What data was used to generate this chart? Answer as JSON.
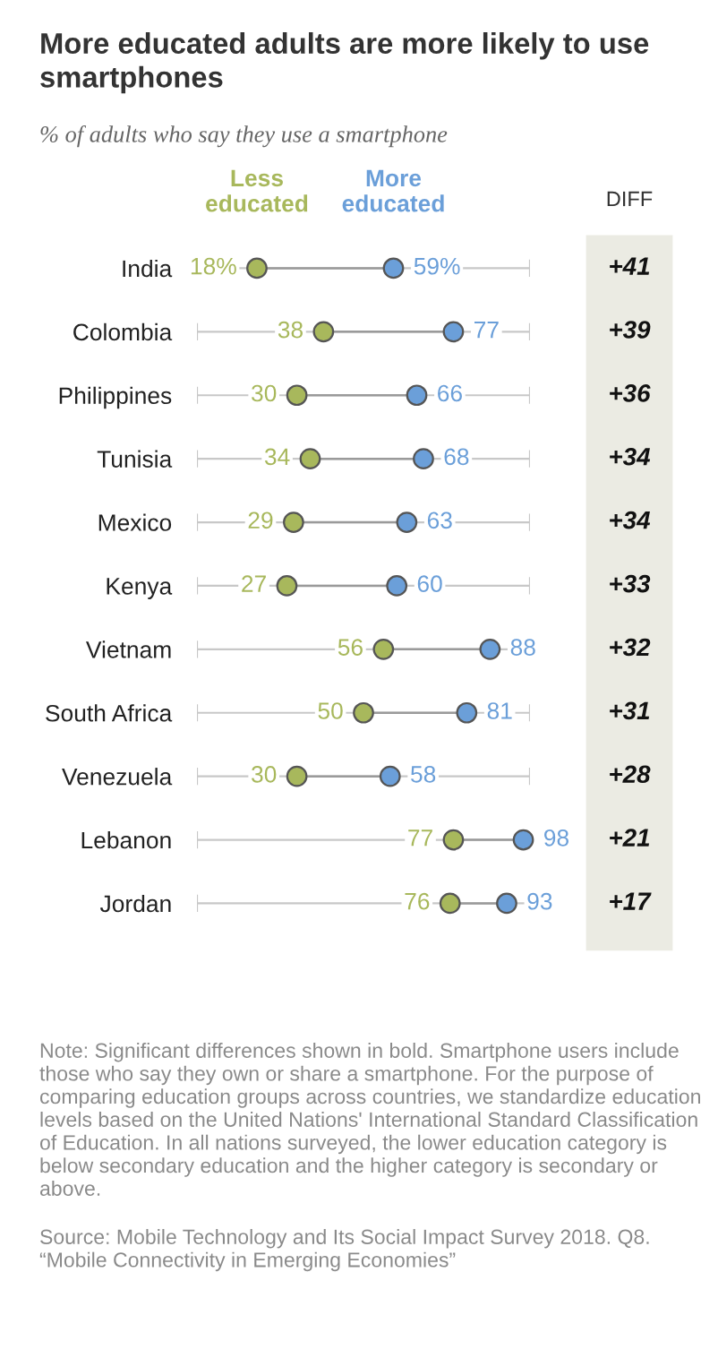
{
  "chart_data": {
    "type": "scatter",
    "orientation": "horizontal",
    "title": "More educated adults are more likely to use smartphones",
    "subtitle": "% of adults who say they use a smartphone",
    "categories": [
      "India",
      "Colombia",
      "Philippines",
      "Tunisia",
      "Mexico",
      "Kenya",
      "Vietnam",
      "South Africa",
      "Venezuela",
      "Lebanon",
      "Jordan"
    ],
    "xlim": [
      0,
      100
    ],
    "series": [
      {
        "name": "Less educated",
        "color": "#a8b85c",
        "values": [
          18,
          38,
          30,
          34,
          29,
          27,
          56,
          50,
          30,
          77,
          76
        ],
        "value_labels": [
          "18%",
          "38",
          "30",
          "34",
          "29",
          "27",
          "56",
          "50",
          "30",
          "77",
          "76"
        ]
      },
      {
        "name": "More educated",
        "color": "#6b9fd9",
        "values": [
          59,
          77,
          66,
          68,
          63,
          60,
          88,
          81,
          58,
          98,
          93
        ],
        "value_labels": [
          "59%",
          "77",
          "66",
          "68",
          "63",
          "60",
          "88",
          "81",
          "58",
          "98",
          "93"
        ]
      }
    ],
    "legend": "top",
    "marker": "circle",
    "grid": "y",
    "annotations": [
      "DIFF",
      "+41",
      "+39",
      "+36",
      "+34",
      "+34",
      "+33",
      "+32",
      "+31",
      "+28",
      "+21",
      "+17",
      "Note: Significant differences shown in bold. Smartphone users include those who say they own or share a smartphone. For the purpose of comparing education groups across countries, we standardize education levels based on the United Nations' International Standard Classification of Education. In all nations surveyed, the lower education category is below secondary education and the higher category is secondary or above.",
      "Source: Mobile Technology and Its Social Impact Survey 2018. Q8. “Mobile Connectivity in Emerging Economies”"
    ]
  }
}
